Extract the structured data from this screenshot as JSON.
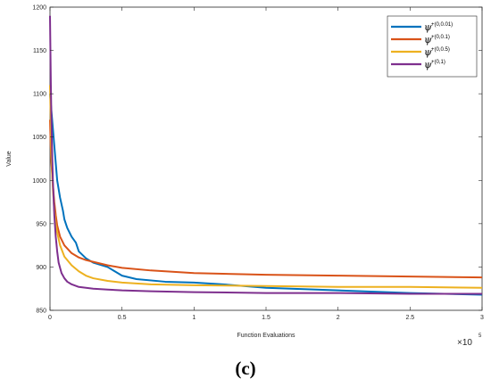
{
  "chart_data": {
    "type": "line",
    "xlabel": "Function Evaluations",
    "ylabel": "Value",
    "x_multiplier_label": "×10",
    "x_exponent": "5",
    "xlim": [
      0,
      3
    ],
    "ylim": [
      850,
      1200
    ],
    "xticks": [
      "0",
      "0.5",
      "1",
      "1.5",
      "2",
      "2.5",
      "3"
    ],
    "yticks": [
      "850",
      "900",
      "950",
      "1000",
      "1050",
      "1100",
      "1150",
      "1200"
    ],
    "grid": false,
    "legend_position": "top-right",
    "caption": "(c)",
    "series": [
      {
        "symbol": "ψ",
        "superscript": "+(0,0.01)",
        "color": "#0072BD",
        "x": [
          0.0,
          0.005,
          0.01,
          0.02,
          0.03,
          0.04,
          0.05,
          0.07,
          0.09,
          0.1,
          0.12,
          0.15,
          0.18,
          0.2,
          0.25,
          0.3,
          0.4,
          0.5,
          0.6,
          0.8,
          1.0,
          1.2,
          1.5,
          2.0,
          2.5,
          3.0
        ],
        "y": [
          1100,
          1090,
          1080,
          1060,
          1040,
          1020,
          1000,
          980,
          965,
          955,
          945,
          935,
          928,
          918,
          910,
          905,
          900,
          890,
          886,
          883,
          882,
          880,
          876,
          873,
          870,
          868
        ]
      },
      {
        "symbol": "ψ",
        "superscript": "+(0,0.1)",
        "color": "#D95319",
        "x": [
          0.0,
          0.005,
          0.01,
          0.02,
          0.03,
          0.04,
          0.05,
          0.07,
          0.1,
          0.15,
          0.2,
          0.25,
          0.3,
          0.4,
          0.5,
          0.7,
          1.0,
          1.5,
          2.0,
          2.5,
          3.0
        ],
        "y": [
          1070,
          1040,
          1020,
          995,
          975,
          960,
          948,
          935,
          925,
          916,
          911,
          908,
          906,
          902,
          899,
          896,
          893,
          891,
          890,
          889,
          888
        ]
      },
      {
        "symbol": "ψ",
        "superscript": "+(0,0.5)",
        "color": "#EDB120",
        "x": [
          0.0,
          0.005,
          0.01,
          0.02,
          0.03,
          0.04,
          0.05,
          0.07,
          0.1,
          0.15,
          0.2,
          0.25,
          0.3,
          0.4,
          0.5,
          0.7,
          1.0,
          1.5,
          2.0,
          2.5,
          3.0
        ],
        "y": [
          1110,
          1070,
          1030,
          990,
          965,
          950,
          940,
          925,
          912,
          902,
          895,
          890,
          887,
          884,
          882,
          880,
          879,
          878,
          877,
          877,
          876
        ]
      },
      {
        "symbol": "ψ",
        "superscript": "+(0,1)",
        "color": "#7E2F8E",
        "x": [
          0.0,
          0.003,
          0.006,
          0.01,
          0.015,
          0.02,
          0.03,
          0.04,
          0.05,
          0.06,
          0.08,
          0.1,
          0.12,
          0.15,
          0.2,
          0.25,
          0.3,
          0.4,
          0.5,
          0.7,
          1.0,
          1.5,
          2.0,
          2.5,
          3.0
        ],
        "y": [
          1190,
          1150,
          1110,
          1070,
          1030,
          1000,
          960,
          935,
          918,
          905,
          893,
          887,
          883,
          880,
          877,
          876,
          875,
          874,
          873,
          872,
          871,
          870,
          870,
          869,
          869
        ]
      }
    ]
  }
}
